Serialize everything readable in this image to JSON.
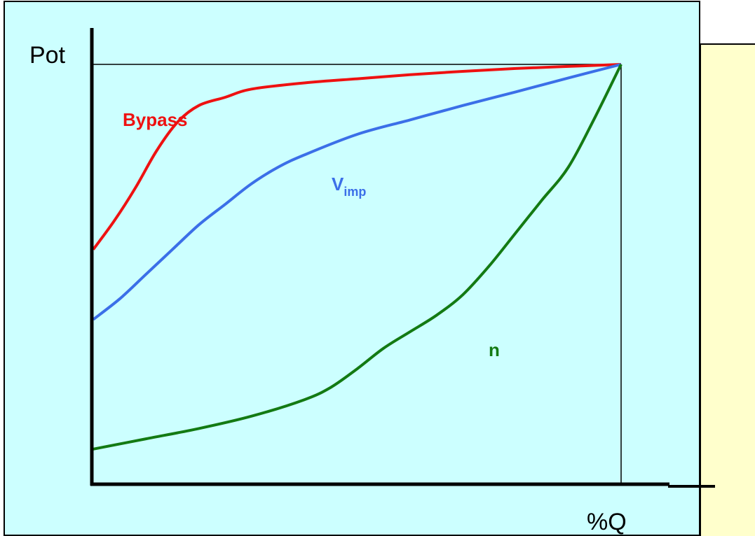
{
  "chart_data": {
    "type": "line",
    "title": "",
    "xlabel": "%Q",
    "ylabel": "Pot",
    "xlim": [
      0,
      100
    ],
    "ylim": [
      0,
      100
    ],
    "grid": false,
    "legend": "none",
    "series": [
      {
        "name": "Bypass",
        "label_main": "Bypass",
        "label_sub": "",
        "color": "#ee1111",
        "x": [
          0,
          4,
          8,
          12,
          16,
          20,
          25,
          30,
          40,
          50,
          60,
          70,
          80,
          90,
          100
        ],
        "y": [
          55,
          62,
          70,
          79,
          86,
          90,
          92,
          94,
          95.5,
          96.5,
          97.5,
          98.3,
          99,
          99.5,
          100
        ]
      },
      {
        "name": "Vimp",
        "label_main": "V",
        "label_sub": "imp",
        "color": "#3b6fe8",
        "x": [
          0,
          5,
          10,
          15,
          20,
          25,
          30,
          35,
          40,
          50,
          60,
          70,
          80,
          90,
          100
        ],
        "y": [
          38,
          43,
          49,
          55,
          61,
          66,
          71,
          75,
          78,
          83,
          86.5,
          90,
          93.3,
          96.7,
          100
        ]
      },
      {
        "name": "n",
        "label_main": "n",
        "label_sub": "",
        "color": "#137a13",
        "x": [
          0,
          10,
          20,
          30,
          40,
          45,
          50,
          55,
          60,
          65,
          70,
          75,
          80,
          85,
          90,
          95,
          100
        ],
        "y": [
          6.5,
          9,
          11.5,
          14.5,
          18.5,
          21.5,
          26,
          31,
          35,
          39,
          44,
          51,
          59,
          67,
          75,
          87,
          100
        ]
      }
    ]
  }
}
